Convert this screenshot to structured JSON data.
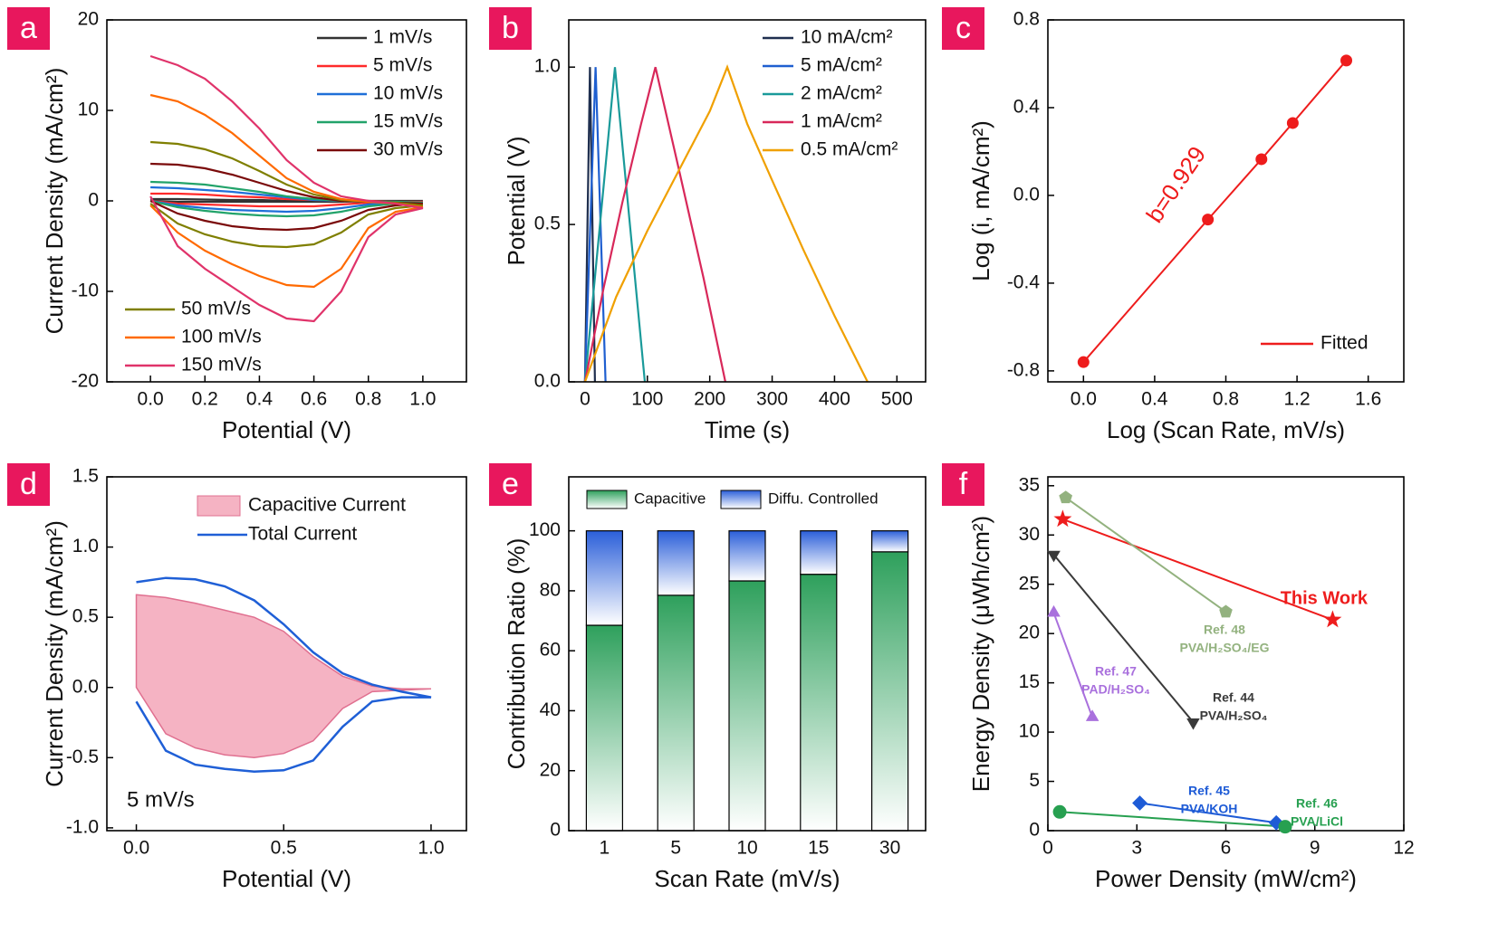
{
  "chart_data": [
    {
      "panel": "a",
      "type": "line",
      "xlabel": "Potential (V)",
      "ylabel": "Current Density (mA/cm²)",
      "x": [
        0,
        0.1,
        0.2,
        0.3,
        0.4,
        0.5,
        0.6,
        0.7,
        0.8,
        0.9,
        1.0,
        0.9,
        0.8,
        0.7,
        0.6,
        0.5,
        0.4,
        0.3,
        0.2,
        0.1,
        0
      ],
      "xlim": [
        -0.16,
        1.16
      ],
      "xticks": [
        {
          "value": 0,
          "label": "0.0"
        },
        {
          "value": 0.2,
          "label": "0.2"
        },
        {
          "value": 0.4,
          "label": "0.4"
        },
        {
          "value": 0.6,
          "label": "0.6"
        },
        {
          "value": 0.8,
          "label": "0.8"
        },
        {
          "value": 1,
          "label": "1.0"
        }
      ],
      "ylim": [
        -20,
        20
      ],
      "yticks": [
        -20,
        -10,
        0,
        10,
        20
      ],
      "legend": "upper right",
      "series": [
        {
          "name": "1 mV/s",
          "color": "#333333",
          "values": [
            0.2,
            0.2,
            0.15,
            0.1,
            0.1,
            0,
            0,
            0,
            0,
            0,
            0,
            0,
            0,
            -0.1,
            -0.1,
            -0.1,
            -0.1,
            -0.1,
            -0.1,
            -0.1,
            0
          ]
        },
        {
          "name": "5 mV/s",
          "color": "#ff2a2a",
          "values": [
            0.8,
            0.8,
            0.7,
            0.5,
            0.4,
            0.2,
            0.1,
            0,
            0,
            -0.1,
            -0.1,
            -0.1,
            -0.2,
            -0.4,
            -0.6,
            -0.6,
            -0.6,
            -0.5,
            -0.4,
            -0.3,
            0
          ]
        },
        {
          "name": "10 mV/s",
          "color": "#1f6fd8",
          "values": [
            1.5,
            1.4,
            1.2,
            1,
            0.7,
            0.4,
            0.1,
            0,
            -0.1,
            -0.1,
            -0.2,
            -0.2,
            -0.4,
            -0.8,
            -1.1,
            -1.2,
            -1.1,
            -1,
            -0.8,
            -0.5,
            0
          ]
        },
        {
          "name": "15 mV/s",
          "color": "#22a36a",
          "values": [
            2.1,
            2,
            1.8,
            1.4,
            1,
            0.5,
            0.2,
            0,
            -0.1,
            -0.1,
            -0.2,
            -0.3,
            -0.6,
            -1.2,
            -1.6,
            -1.7,
            -1.6,
            -1.4,
            -1.1,
            -0.7,
            0
          ]
        },
        {
          "name": "30 mV/s",
          "color": "#7a0a0a",
          "values": [
            4.1,
            4,
            3.6,
            2.9,
            2,
            1.1,
            0.4,
            0,
            -0.1,
            -0.2,
            -0.3,
            -0.5,
            -1,
            -2.2,
            -3,
            -3.2,
            -3.1,
            -2.8,
            -2.2,
            -1.4,
            0
          ]
        },
        {
          "name": "50 mV/s",
          "color": "#7f7f00",
          "values": [
            6.5,
            6.3,
            5.7,
            4.7,
            3.3,
            1.8,
            0.7,
            0.1,
            -0.1,
            -0.2,
            -0.5,
            -0.8,
            -1.5,
            -3.5,
            -4.8,
            -5.1,
            -5,
            -4.5,
            -3.7,
            -2.5,
            -0.3
          ]
        },
        {
          "name": "100 mV/s",
          "color": "#ff6a00",
          "values": [
            11.7,
            11,
            9.5,
            7.5,
            5,
            2.5,
            1,
            0.2,
            -0.1,
            -0.3,
            -0.7,
            -1.2,
            -3,
            -7.5,
            -9.5,
            -9.3,
            -8.3,
            -7,
            -5.5,
            -3.5,
            -0.5
          ]
        },
        {
          "name": "150 mV/s",
          "color": "#e0336a",
          "values": [
            16,
            15,
            13.5,
            11,
            8,
            4.5,
            2,
            0.5,
            0,
            -0.3,
            -0.8,
            -1.5,
            -4,
            -10,
            -13.3,
            -13,
            -11.5,
            -9.5,
            -7.5,
            -5,
            0.5
          ]
        }
      ]
    },
    {
      "panel": "b",
      "type": "line",
      "xlabel": "Time (s)",
      "ylabel": "Potential (V)",
      "xlim": [
        -26,
        546
      ],
      "xticks": [
        0,
        100,
        200,
        300,
        400,
        500
      ],
      "ylim": [
        0,
        1.15
      ],
      "yticks": [
        {
          "value": 0,
          "label": "0.0"
        },
        {
          "value": 0.5,
          "label": "0.5"
        },
        {
          "value": 1,
          "label": "1.0"
        }
      ],
      "legend": "upper right",
      "series": [
        {
          "name": "10 mA/cm²",
          "color": "#1f2f4f",
          "x": [
            0,
            8,
            16
          ],
          "values": [
            0,
            1,
            0
          ]
        },
        {
          "name": "5 mA/cm²",
          "color": "#1f5fd0",
          "x": [
            0,
            17,
            33
          ],
          "values": [
            0,
            1,
            0
          ]
        },
        {
          "name": "2 mA/cm²",
          "color": "#1a9a9a",
          "x": [
            0,
            48,
            96
          ],
          "values": [
            0,
            1,
            0
          ]
        },
        {
          "name": "1 mA/cm²",
          "color": "#d8285a",
          "x": [
            0,
            30,
            60,
            90,
            113,
            150,
            190,
            225
          ],
          "values": [
            0,
            0.3,
            0.57,
            0.82,
            1,
            0.68,
            0.33,
            0
          ]
        },
        {
          "name": "0.5 mA/cm²",
          "color": "#f0a000",
          "x": [
            0,
            50,
            100,
            150,
            200,
            228,
            260,
            300,
            350,
            400,
            453
          ],
          "values": [
            0,
            0.27,
            0.48,
            0.67,
            0.86,
            1,
            0.82,
            0.64,
            0.42,
            0.21,
            0
          ]
        }
      ]
    },
    {
      "panel": "c",
      "type": "scatter",
      "xlabel": "Log (Scan Rate, mV/s)",
      "ylabel": "Log (i, mA/cm²)",
      "annotation": "b=0.929",
      "x": [
        0,
        0.699,
        1,
        1.176,
        1.477
      ],
      "xlim": [
        -0.2,
        1.8
      ],
      "xticks": [
        {
          "value": 0,
          "label": "0.0"
        },
        0.4,
        0.8,
        1.2,
        1.6
      ],
      "ylim": [
        -0.85,
        0.8
      ],
      "yticks": [
        -0.8,
        -0.4,
        {
          "value": 0,
          "label": "0.0"
        },
        0.4,
        0.8
      ],
      "legend": "lower right",
      "series": [
        {
          "name": "Fitted",
          "color": "#ee1c1c",
          "marker": "circle",
          "values": [
            -0.76,
            -0.11,
            0.165,
            0.33,
            0.615
          ]
        }
      ]
    },
    {
      "panel": "d",
      "type": "area",
      "xlabel": "Potential (V)",
      "ylabel": "Current Density (mA/cm²)",
      "annotation": "5 mV/s",
      "x": [
        0,
        0.1,
        0.2,
        0.3,
        0.4,
        0.5,
        0.6,
        0.7,
        0.8,
        0.9,
        1.0,
        0.9,
        0.8,
        0.7,
        0.6,
        0.5,
        0.4,
        0.3,
        0.2,
        0.1,
        0
      ],
      "xlim": [
        -0.1,
        1.12
      ],
      "xticks": [
        {
          "value": 0,
          "label": "0.0"
        },
        {
          "value": 0.5,
          "label": "0.5"
        },
        {
          "value": 1,
          "label": "1.0"
        }
      ],
      "ylim": [
        -1.02,
        1.5
      ],
      "yticks": [
        {
          "value": -1,
          "label": "-1.0"
        },
        -0.5,
        {
          "value": 0,
          "label": "0.0"
        },
        0.5,
        {
          "value": 1,
          "label": "1.0"
        },
        1.5
      ],
      "legend": "upper right",
      "series": [
        {
          "name": "Capacitive Current",
          "color": "#e07090",
          "fill": "#f5b3c3",
          "values": [
            0.66,
            0.64,
            0.6,
            0.55,
            0.5,
            0.4,
            0.22,
            0.08,
            0.01,
            -0.01,
            -0.01,
            -0.02,
            -0.03,
            -0.15,
            -0.38,
            -0.47,
            -0.5,
            -0.48,
            -0.43,
            -0.33,
            0
          ]
        },
        {
          "name": "Total Current",
          "color": "#1f5fd6",
          "values": [
            0.75,
            0.78,
            0.77,
            0.72,
            0.62,
            0.45,
            0.25,
            0.1,
            0.02,
            -0.03,
            -0.07,
            -0.07,
            -0.1,
            -0.28,
            -0.52,
            -0.59,
            -0.6,
            -0.58,
            -0.55,
            -0.45,
            -0.1
          ]
        }
      ]
    },
    {
      "panel": "e",
      "type": "bar",
      "xlabel": "Scan Rate (mV/s)",
      "ylabel": "Contribution Ratio (%)",
      "categories": [
        "1",
        "5",
        "10",
        "15",
        "30"
      ],
      "ylim": [
        0,
        118
      ],
      "yticks": [
        0,
        20,
        40,
        60,
        80,
        100
      ],
      "legend": "top",
      "series": [
        {
          "name": "Capacitive",
          "color": "#2ea05c",
          "values": [
            68.5,
            78.5,
            83.3,
            85.5,
            93
          ]
        },
        {
          "name": "Diffu. Controlled",
          "color": "#2b5fd9",
          "values": [
            31.5,
            21.5,
            16.7,
            14.5,
            7
          ]
        }
      ]
    },
    {
      "panel": "f",
      "type": "scatter",
      "xlabel": "Power Density (mW/cm²)",
      "ylabel": "Energy Density (μWh/cm²)",
      "xlim": [
        0,
        12
      ],
      "xticks": [
        0,
        3,
        6,
        9,
        12
      ],
      "ylim": [
        0,
        35.9
      ],
      "yticks": [
        0,
        5,
        10,
        15,
        20,
        25,
        30,
        35
      ],
      "series": [
        {
          "name": "This Work",
          "color": "#ee1c1c",
          "marker": "star",
          "x": [
            0.5,
            9.6
          ],
          "values": [
            31.6,
            21.4
          ]
        },
        {
          "name": "Ref. 48",
          "note": "PVA/H₂SO₄/EG",
          "color": "#93b27f",
          "marker": "pentagon",
          "x": [
            0.6,
            6
          ],
          "values": [
            33.8,
            22.2
          ]
        },
        {
          "name": "Ref. 44",
          "note": "PVA/H₂SO₄",
          "color": "#3a3a3a",
          "marker": "triangle-down",
          "x": [
            0.2,
            4.9
          ],
          "values": [
            28,
            11
          ]
        },
        {
          "name": "Ref. 47",
          "note": "PAD/H₂SO₄",
          "color": "#a970dd",
          "marker": "triangle-up",
          "x": [
            0.2,
            1.5
          ],
          "values": [
            22.1,
            11.5
          ]
        },
        {
          "name": "Ref. 45",
          "note": "PVA/KOH",
          "color": "#1e5bd6",
          "marker": "diamond",
          "x": [
            3.1,
            7.7
          ],
          "values": [
            2.8,
            0.8
          ]
        },
        {
          "name": "Ref. 46",
          "note": "PVA/LiCl",
          "color": "#27a050",
          "marker": "circle",
          "x": [
            0.4,
            8
          ],
          "values": [
            1.9,
            0.4
          ]
        }
      ]
    }
  ]
}
